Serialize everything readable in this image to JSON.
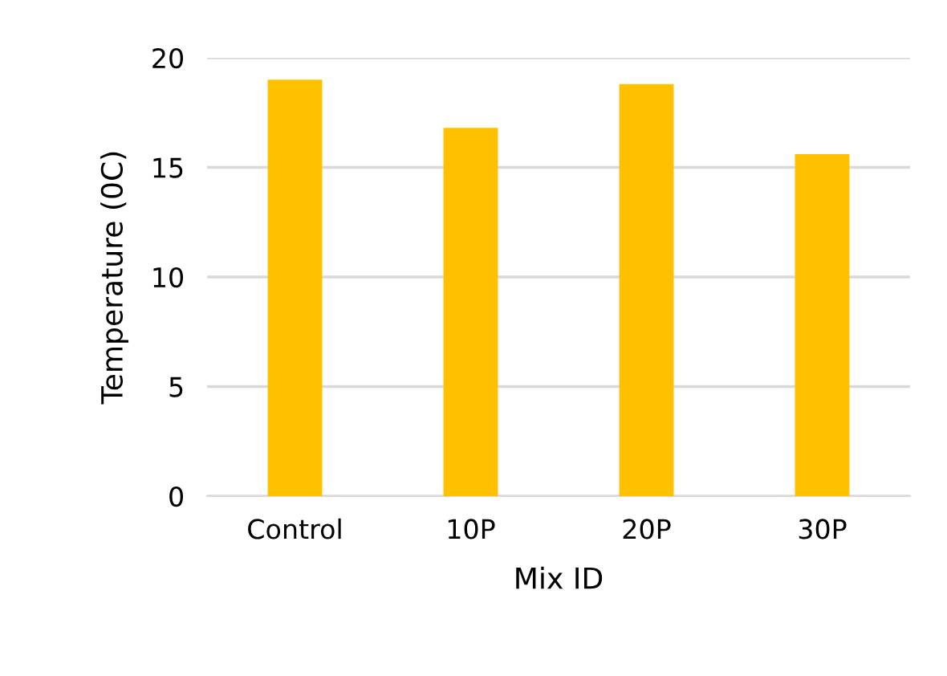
{
  "chart_data": {
    "type": "bar",
    "xlabel": "Mix ID",
    "ylabel": "Temperature (0C)",
    "categories": [
      "Control",
      "10P",
      "20P",
      "30P"
    ],
    "values": [
      19.0,
      16.8,
      18.8,
      15.6
    ],
    "color": "#ffc000",
    "ylim": [
      0,
      20
    ],
    "yticks": [
      0,
      5,
      10,
      15,
      20
    ],
    "grid": "y"
  }
}
